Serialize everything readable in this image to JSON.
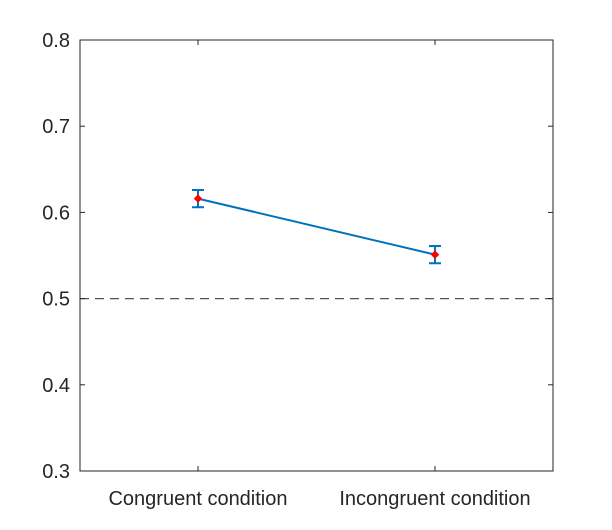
{
  "chart_data": {
    "type": "line",
    "title": "",
    "xlabel": "",
    "ylabel": "",
    "categories": [
      "Congruent condition",
      "Incongruent condition"
    ],
    "series": [
      {
        "values": [
          0.616,
          0.551
        ],
        "error": [
          0.01,
          0.01
        ],
        "line_color": "#0072BD",
        "marker_color": "#FF0000"
      }
    ],
    "reference_line": {
      "y": 0.5,
      "style": "dashed",
      "color": "#555555"
    },
    "ylim": [
      0.3,
      0.8
    ],
    "yticks": [
      "0.3",
      "0.4",
      "0.5",
      "0.6",
      "0.7",
      "0.8"
    ],
    "grid": false
  }
}
